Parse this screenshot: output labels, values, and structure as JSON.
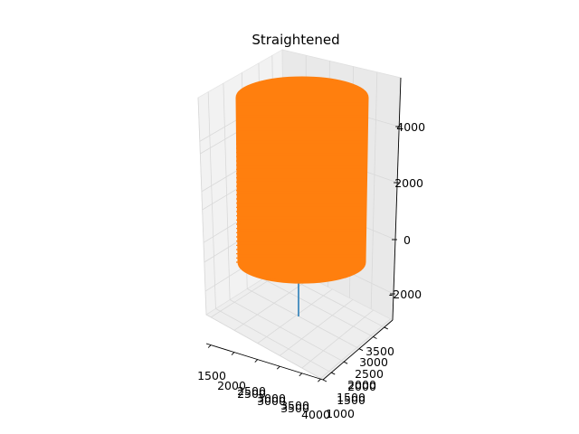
{
  "chart_data": {
    "type": "3d-line",
    "title": "Straightened",
    "grid": true,
    "legend": "none",
    "axes": {
      "x": {
        "ticks": [
          "1500",
          "2000",
          "2500",
          "3000",
          "3500",
          "4000"
        ],
        "ticks_overlap": [
          "2500",
          "3000",
          "3500"
        ],
        "range": [
          1300,
          4200
        ]
      },
      "y": {
        "ticks": [
          "1000",
          "1500",
          "2000",
          "2500",
          "3000",
          "3500"
        ],
        "ticks_overlap": [
          "1500",
          "2000"
        ],
        "range": [
          800,
          3800
        ]
      },
      "z": {
        "ticks": [
          "-2000",
          "0",
          "2000",
          "4000"
        ],
        "range": [
          -3000,
          5000
        ]
      }
    },
    "series": [
      {
        "color": "#1f77b4",
        "shape": "centerline",
        "points": [
          [
            2750,
            2500,
            -2700
          ],
          [
            2750,
            2500,
            -1500
          ]
        ]
      },
      {
        "color": "#ff7f0e",
        "shape": "helical-cylinder",
        "center": [
          2750,
          2500
        ],
        "radius": 1150,
        "z_range": [
          -1500,
          4600
        ]
      }
    ]
  }
}
